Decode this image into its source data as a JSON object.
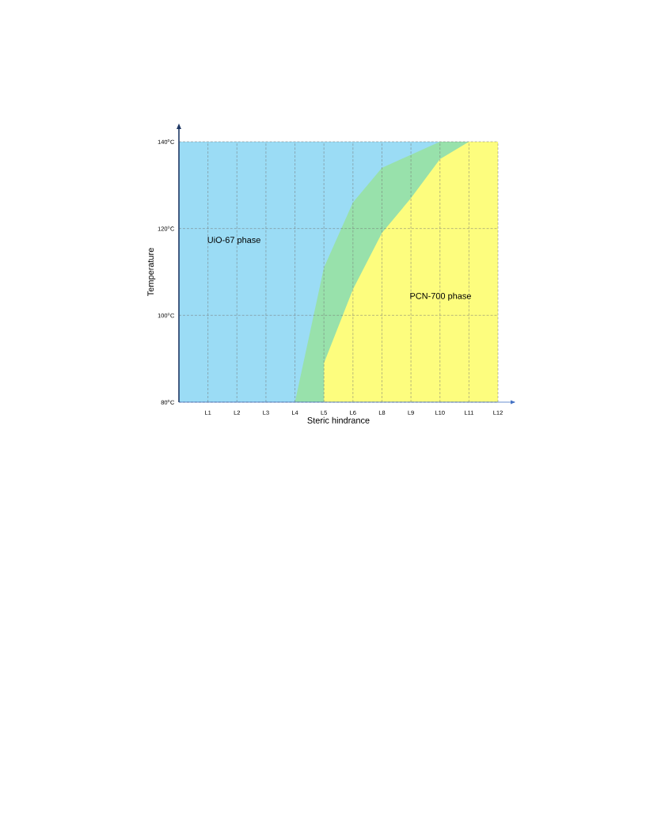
{
  "chart_data": {
    "type": "area",
    "xlabel": "Steric hindrance",
    "ylabel": "Temperature",
    "categories": [
      "L1",
      "L2",
      "L3",
      "L4",
      "L5",
      "L6",
      "L8",
      "L9",
      "L10",
      "L11",
      "L12"
    ],
    "ylim": [
      80,
      140
    ],
    "yticks": [
      {
        "value": 80,
        "label": "80$^{o}$C"
      },
      {
        "value": 100,
        "label": "100$^{o}$C"
      },
      {
        "value": 120,
        "label": "120$^{o}$C"
      },
      {
        "value": 140,
        "label": "140$^{o}$C"
      }
    ],
    "grid": true,
    "series": [
      {
        "color": "#98e1ab",
        "values": [
          null,
          null,
          null,
          80,
          111,
          126,
          134,
          137,
          140,
          140,
          140
        ]
      },
      {
        "color": "#fdfd7e",
        "values": [
          null,
          null,
          null,
          null,
          89,
          106,
          119,
          127,
          136,
          140,
          140
        ]
      }
    ],
    "annotations": [
      "UiO-67 phase",
      "PCN-700 phase"
    ]
  }
}
